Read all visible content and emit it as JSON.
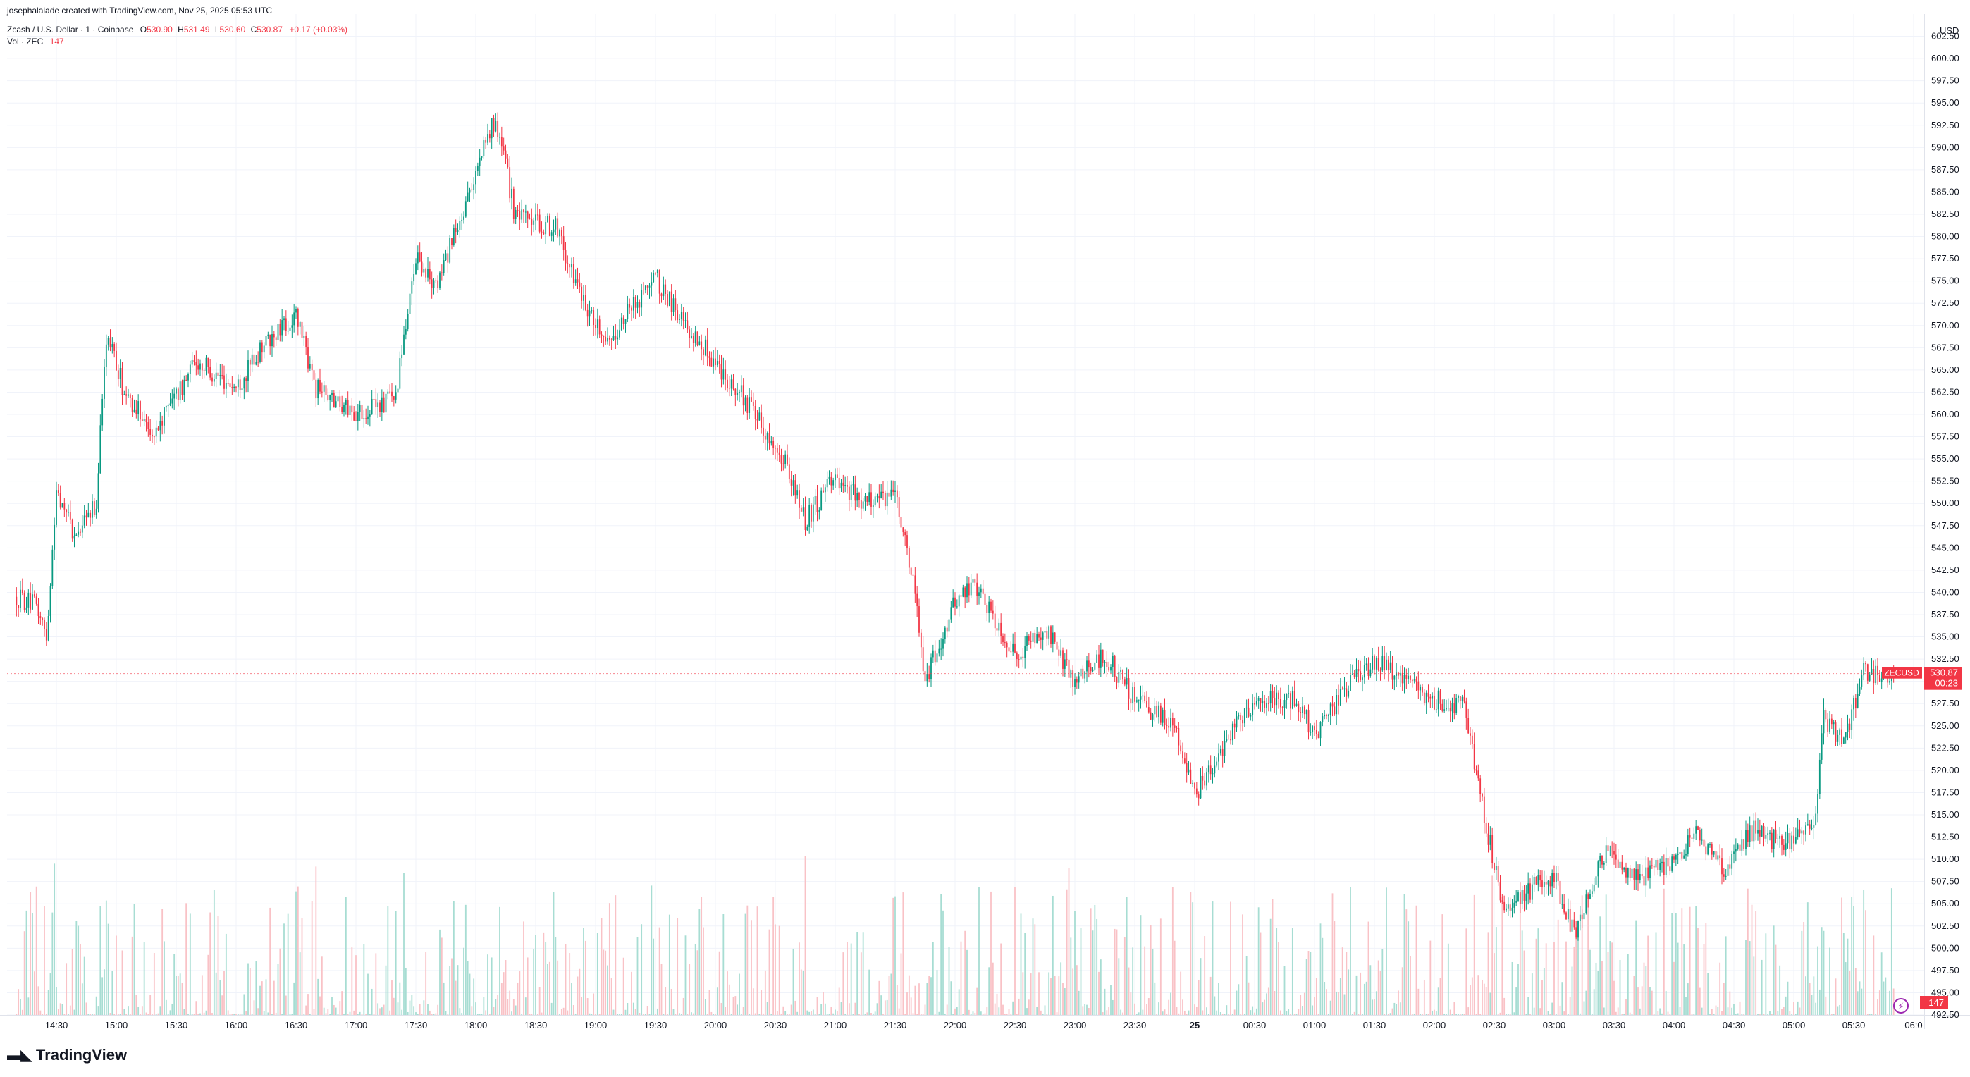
{
  "header": {
    "creator": "josephalalade created with TradingView.com, Nov 25, 2025 05:53 UTC",
    "symbol": "Zcash / U.S. Dollar · 1 · Coinbase",
    "o_label": "O",
    "o_value": "530.90",
    "h_label": "H",
    "h_value": "531.49",
    "l_label": "L",
    "l_value": "530.60",
    "c_label": "C",
    "c_value": "530.87",
    "change": "+0.17 (+0.03%)",
    "vol_label": "Vol · ZEC",
    "vol_value": "147"
  },
  "footer": {
    "brand": "TradingView"
  },
  "colors": {
    "up": "#089981",
    "down": "#f23645",
    "grid": "#f0f3fa",
    "vol_up": "#a7ddd3",
    "vol_down": "#f9c2c6"
  },
  "chart_data": {
    "type": "candlestick",
    "title": "Zcash / U.S. Dollar · 1 · Coinbase",
    "currency": "USD",
    "ylim": [
      492.5,
      605
    ],
    "y_ticks": [
      "602.50",
      "600.00",
      "597.50",
      "595.00",
      "592.50",
      "590.00",
      "587.50",
      "585.00",
      "582.50",
      "580.00",
      "577.50",
      "575.00",
      "572.50",
      "570.00",
      "567.50",
      "565.00",
      "562.50",
      "560.00",
      "557.50",
      "555.00",
      "552.50",
      "550.00",
      "547.50",
      "545.00",
      "542.50",
      "540.00",
      "537.50",
      "535.00",
      "532.50",
      "530.00",
      "527.50",
      "525.00",
      "522.50",
      "520.00",
      "517.50",
      "515.00",
      "512.50",
      "510.00",
      "507.50",
      "505.00",
      "502.50",
      "500.00",
      "497.50",
      "495.00",
      "492.50"
    ],
    "x_ticks": [
      "14:30",
      "15:00",
      "15:30",
      "16:00",
      "16:30",
      "17:00",
      "17:30",
      "18:00",
      "18:30",
      "19:00",
      "19:30",
      "20:00",
      "20:30",
      "21:00",
      "21:30",
      "22:00",
      "22:30",
      "23:00",
      "23:30",
      "25",
      "00:30",
      "01:00",
      "01:30",
      "02:00",
      "02:30",
      "03:00",
      "03:30",
      "04:00",
      "04:30",
      "05:00",
      "05:30",
      "06:0"
    ],
    "price_path": [
      {
        "t": "14:10",
        "p": 539.5
      },
      {
        "t": "14:20",
        "p": 538.5
      },
      {
        "t": "14:25",
        "p": 535.0
      },
      {
        "t": "14:30",
        "p": 551.0
      },
      {
        "t": "14:40",
        "p": 546.0
      },
      {
        "t": "14:50",
        "p": 550.0
      },
      {
        "t": "14:55",
        "p": 569.0
      },
      {
        "t": "15:05",
        "p": 562.0
      },
      {
        "t": "15:20",
        "p": 558.0
      },
      {
        "t": "15:40",
        "p": 566.0
      },
      {
        "t": "16:00",
        "p": 563.0
      },
      {
        "t": "16:15",
        "p": 568.0
      },
      {
        "t": "16:30",
        "p": 571.0
      },
      {
        "t": "16:40",
        "p": 563.0
      },
      {
        "t": "17:00",
        "p": 560.0
      },
      {
        "t": "17:20",
        "p": 562.0
      },
      {
        "t": "17:30",
        "p": 578.0
      },
      {
        "t": "17:40",
        "p": 574.0
      },
      {
        "t": "17:55",
        "p": 584.0
      },
      {
        "t": "18:10",
        "p": 593.5
      },
      {
        "t": "18:20",
        "p": 582.0
      },
      {
        "t": "18:40",
        "p": 581.0
      },
      {
        "t": "18:55",
        "p": 572.0
      },
      {
        "t": "19:05",
        "p": 568.0
      },
      {
        "t": "19:30",
        "p": 575.5
      },
      {
        "t": "19:45",
        "p": 570.0
      },
      {
        "t": "20:00",
        "p": 566.0
      },
      {
        "t": "20:20",
        "p": 560.0
      },
      {
        "t": "20:35",
        "p": 555.0
      },
      {
        "t": "20:45",
        "p": 548.0
      },
      {
        "t": "21:00",
        "p": 553.0
      },
      {
        "t": "21:15",
        "p": 550.0
      },
      {
        "t": "21:30",
        "p": 551.0
      },
      {
        "t": "21:40",
        "p": 540.0
      },
      {
        "t": "21:45",
        "p": 530.0
      },
      {
        "t": "22:00",
        "p": 539.0
      },
      {
        "t": "22:10",
        "p": 541.0
      },
      {
        "t": "22:30",
        "p": 533.0
      },
      {
        "t": "22:45",
        "p": 536.0
      },
      {
        "t": "23:00",
        "p": 530.0
      },
      {
        "t": "23:15",
        "p": 533.0
      },
      {
        "t": "23:30",
        "p": 528.0
      },
      {
        "t": "23:50",
        "p": 525.0
      },
      {
        "t": "00:00",
        "p": 517.0
      },
      {
        "t": "00:15",
        "p": 523.0
      },
      {
        "t": "00:30",
        "p": 528.0
      },
      {
        "t": "00:50",
        "p": 528.0
      },
      {
        "t": "01:00",
        "p": 524.0
      },
      {
        "t": "01:15",
        "p": 529.0
      },
      {
        "t": "01:30",
        "p": 532.5
      },
      {
        "t": "01:45",
        "p": 530.0
      },
      {
        "t": "02:00",
        "p": 528.0
      },
      {
        "t": "02:15",
        "p": 527.0
      },
      {
        "t": "02:25",
        "p": 515.0
      },
      {
        "t": "02:35",
        "p": 503.5
      },
      {
        "t": "02:50",
        "p": 507.0
      },
      {
        "t": "03:00",
        "p": 508.0
      },
      {
        "t": "03:10",
        "p": 501.5
      },
      {
        "t": "03:25",
        "p": 510.5
      },
      {
        "t": "03:45",
        "p": 508.0
      },
      {
        "t": "04:00",
        "p": 510.0
      },
      {
        "t": "04:10",
        "p": 513.0
      },
      {
        "t": "04:25",
        "p": 508.5
      },
      {
        "t": "04:40",
        "p": 513.5
      },
      {
        "t": "04:55",
        "p": 511.5
      },
      {
        "t": "05:10",
        "p": 513.5
      },
      {
        "t": "05:15",
        "p": 526.0
      },
      {
        "t": "05:25",
        "p": 523.0
      },
      {
        "t": "05:35",
        "p": 531.0
      },
      {
        "t": "05:50",
        "p": 530.87
      }
    ],
    "last_price": {
      "symbol": "ZECUSD",
      "value": "530.87",
      "countdown": "00:23"
    },
    "volume": {
      "last": "147"
    }
  }
}
